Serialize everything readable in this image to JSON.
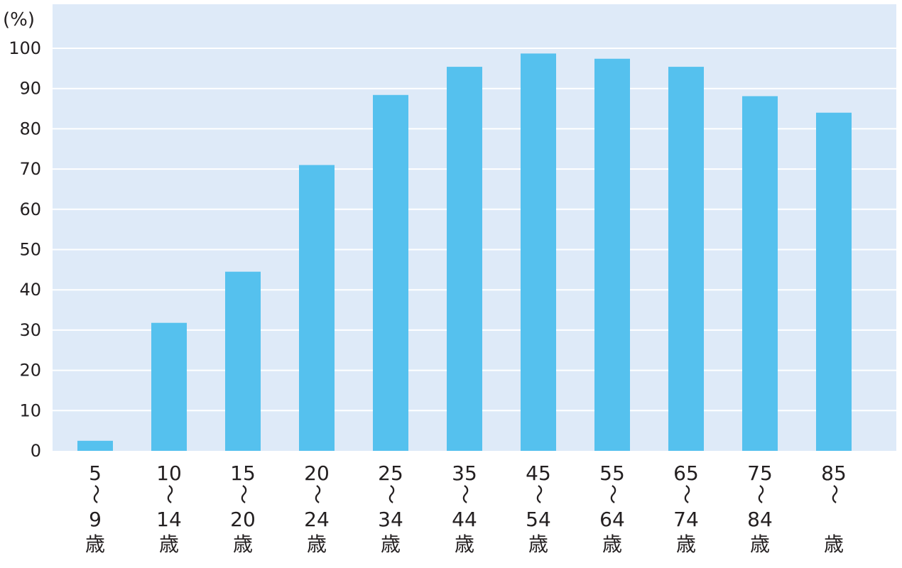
{
  "chart_data": {
    "type": "bar",
    "categories": [
      {
        "top": "5",
        "mid": "〜",
        "bottom": "9",
        "unit": "歳"
      },
      {
        "top": "10",
        "mid": "〜",
        "bottom": "14",
        "unit": "歳"
      },
      {
        "top": "15",
        "mid": "〜",
        "bottom": "20",
        "unit": "歳"
      },
      {
        "top": "20",
        "mid": "〜",
        "bottom": "24",
        "unit": "歳"
      },
      {
        "top": "25",
        "mid": "〜",
        "bottom": "34",
        "unit": "歳"
      },
      {
        "top": "35",
        "mid": "〜",
        "bottom": "44",
        "unit": "歳"
      },
      {
        "top": "45",
        "mid": "〜",
        "bottom": "54",
        "unit": "歳"
      },
      {
        "top": "55",
        "mid": "〜",
        "bottom": "64",
        "unit": "歳"
      },
      {
        "top": "65",
        "mid": "〜",
        "bottom": "74",
        "unit": "歳"
      },
      {
        "top": "75",
        "mid": "〜",
        "bottom": "84",
        "unit": "歳"
      },
      {
        "top": "85",
        "mid": "〜",
        "bottom": "",
        "unit": "歳"
      }
    ],
    "values": [
      2.5,
      31.8,
      44.5,
      71.0,
      88.4,
      95.4,
      98.7,
      97.4,
      95.4,
      88.1,
      84.0
    ],
    "ylabel": "(%)",
    "ylim": [
      0,
      100
    ],
    "yticks": [
      "0",
      "10",
      "20",
      "30",
      "40",
      "50",
      "60",
      "70",
      "80",
      "90",
      "100"
    ],
    "grid": true,
    "colors": {
      "bar": "#55c1ee",
      "plot_bg": "#deeaf8",
      "grid": "#ffffff",
      "text": "#231f20"
    }
  }
}
